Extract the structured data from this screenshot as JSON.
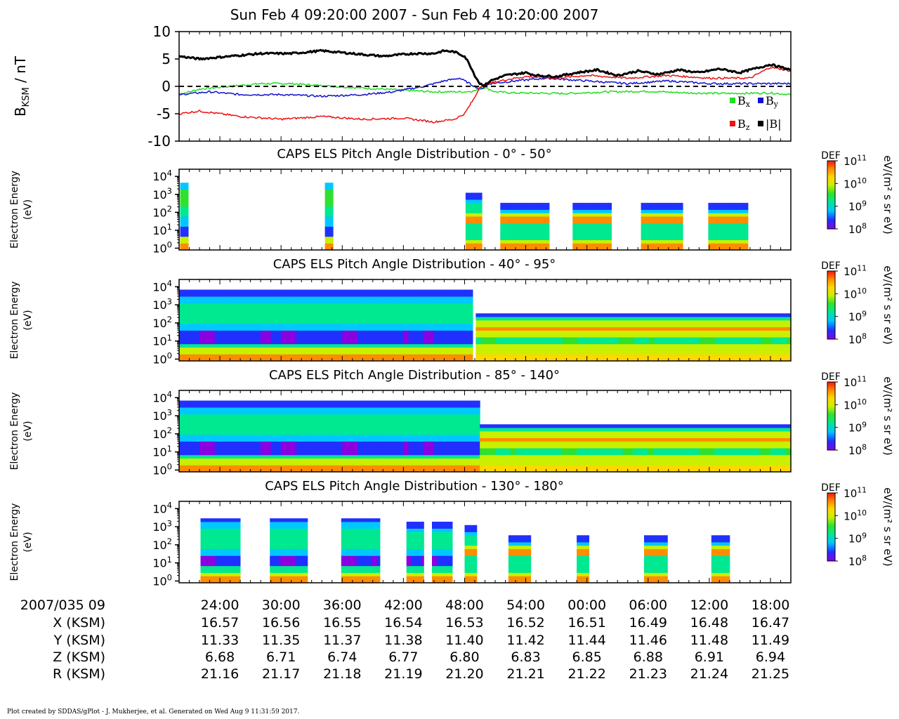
{
  "title": "Sun Feb 4 09:20:00 2007 - Sun Feb 4 10:20:00 2007",
  "footer": "Plot created by SDDAS/gPlot - J. Mukherjee, et al.  Generated on Wed Aug 9 11:31:59 2017.",
  "colors": {
    "bx": "#22dd22",
    "by": "#1111cc",
    "bz": "#ee1111",
    "bmag": "#000000",
    "colormap": [
      "#8a00e0",
      "#2030ff",
      "#00c8ff",
      "#00e890",
      "#30e030",
      "#c8f000",
      "#ffd800",
      "#ff8c00",
      "#ff1010"
    ]
  },
  "chart_data": [
    {
      "type": "line",
      "ylabel": "B_KSM / nT",
      "ylim": [
        -10,
        10
      ],
      "yticks": [
        "10",
        "5",
        "0",
        "-5",
        "-10"
      ],
      "xlim_minutes": [
        20,
        80
      ],
      "legend": [
        "Bx",
        "By",
        "Bz",
        "|B|"
      ],
      "legend_placement": "bottom-right",
      "zero_line": "dashed",
      "series": [
        {
          "name": "Bx",
          "x": [
            20,
            22,
            25,
            28,
            31,
            35,
            40,
            45,
            48,
            49,
            50,
            51,
            53,
            58,
            62,
            66,
            70,
            74,
            78,
            80
          ],
          "y": [
            -1.5,
            -0.5,
            0,
            0.5,
            0.5,
            0,
            -0.5,
            -1,
            -1,
            -0.8,
            -0.2,
            -1,
            -1.2,
            -1.3,
            -1,
            -0.9,
            -1.2,
            -1.3,
            -1.2,
            -1.5
          ]
        },
        {
          "name": "By",
          "x": [
            20,
            23,
            26,
            30,
            34,
            38,
            41,
            44,
            46,
            47.5,
            48.5,
            49.5,
            50.5,
            53,
            56,
            60,
            64,
            68,
            72,
            76,
            80
          ],
          "y": [
            -1.5,
            -1,
            -1.5,
            -1.5,
            -1.8,
            -1.5,
            -1,
            0,
            1,
            1.5,
            0.5,
            -0.5,
            0.5,
            1,
            1.5,
            1,
            0.5,
            1,
            0.5,
            0.5,
            0.5
          ]
        },
        {
          "name": "Bz",
          "x": [
            20,
            22,
            26,
            30,
            34,
            38,
            42,
            45,
            47,
            48,
            49,
            49.5,
            50.3,
            52,
            54,
            57,
            60,
            64,
            68,
            72,
            76,
            78,
            80
          ],
          "y": [
            -5,
            -4.5,
            -5.5,
            -6,
            -5.5,
            -6,
            -5.8,
            -6.5,
            -6,
            -5,
            -2,
            0,
            0.5,
            1.2,
            1.8,
            1.5,
            2,
            1.5,
            2,
            1.5,
            1.5,
            3.5,
            2.8
          ]
        },
        {
          "name": "|B|",
          "x": [
            20,
            22,
            25,
            28,
            31,
            34,
            37,
            40,
            43,
            45,
            46,
            47,
            48,
            48.5,
            49,
            49.5,
            50,
            50.5,
            52,
            54,
            55,
            57,
            59,
            61,
            63,
            65,
            67,
            69,
            71,
            73,
            75,
            77,
            78,
            79,
            80
          ],
          "y": [
            5.5,
            5,
            5.5,
            6,
            6,
            6.5,
            6,
            5.5,
            6,
            6,
            6.5,
            6.3,
            5.5,
            4,
            2,
            0.5,
            0.2,
            1,
            2,
            2.5,
            2,
            1.8,
            2.5,
            3,
            2,
            2.8,
            2.2,
            3,
            2.5,
            3.2,
            2.5,
            3.5,
            4,
            3.5,
            3
          ]
        }
      ]
    },
    {
      "type": "heatmap",
      "title": "CAPS ELS Pitch Angle Distribution - 0° - 50°",
      "ylabel": "Electron Energy",
      "yunit": "(eV)",
      "yticks": [
        "10^0",
        "10^1",
        "10^2",
        "10^3",
        "10^4"
      ],
      "colorbar": {
        "label": "DEF",
        "unit": "eV/(m² s sr eV)",
        "ticks": [
          "10^8",
          "10^9",
          "10^10",
          "10^11"
        ]
      },
      "coverage_minutes": [
        [
          20.1,
          20.9,
          "burst"
        ],
        [
          34.3,
          35.1,
          "burst"
        ],
        [
          48.1,
          49.7,
          "top3"
        ],
        [
          51.5,
          56.3,
          "top2.5"
        ],
        [
          58.6,
          62.4,
          "top2.5"
        ],
        [
          65.3,
          69.4,
          "top2.5"
        ],
        [
          71.9,
          75.8,
          "top2.5"
        ]
      ]
    },
    {
      "type": "heatmap",
      "title": "CAPS ELS Pitch Angle Distribution - 40° - 95°",
      "ylabel": "Electron Energy",
      "yunit": "(eV)",
      "yticks": [
        "10^0",
        "10^1",
        "10^2",
        "10^3",
        "10^4"
      ],
      "colorbar": {
        "label": "DEF",
        "unit": "eV/(m² s sr eV)",
        "ticks": [
          "10^8",
          "10^9",
          "10^10",
          "10^11"
        ]
      },
      "coverage_minutes": [
        [
          20,
          48.8,
          "plasma_sheet"
        ],
        [
          49.1,
          80,
          "lobe"
        ]
      ]
    },
    {
      "type": "heatmap",
      "title": "CAPS ELS Pitch Angle Distribution - 85° - 140°",
      "ylabel": "Electron Energy",
      "yunit": "(eV)",
      "yticks": [
        "10^0",
        "10^1",
        "10^2",
        "10^3",
        "10^4"
      ],
      "colorbar": {
        "label": "DEF",
        "unit": "eV/(m² s sr eV)",
        "ticks": [
          "10^8",
          "10^9",
          "10^10",
          "10^11"
        ]
      },
      "coverage_minutes": [
        [
          20,
          49.5,
          "plasma_sheet"
        ],
        [
          49.5,
          80,
          "lobe"
        ]
      ]
    },
    {
      "type": "heatmap",
      "title": "CAPS ELS Pitch Angle Distribution - 130° - 180°",
      "ylabel": "Electron Energy",
      "yunit": "(eV)",
      "yticks": [
        "10^0",
        "10^1",
        "10^2",
        "10^3",
        "10^4"
      ],
      "colorbar": {
        "label": "DEF",
        "unit": "eV/(m² s sr eV)",
        "ticks": [
          "10^8",
          "10^9",
          "10^10",
          "10^11"
        ]
      },
      "coverage_minutes": [
        [
          22.1,
          26.0,
          "top3.5"
        ],
        [
          28.9,
          32.6,
          "top3.5"
        ],
        [
          35.9,
          39.7,
          "top3.5"
        ],
        [
          42.3,
          44.0,
          "top3.2"
        ],
        [
          44.8,
          46.8,
          "top3.2"
        ],
        [
          48.0,
          49.2,
          "top3"
        ],
        [
          52.3,
          54.5,
          "top2.5"
        ],
        [
          59.0,
          60.2,
          "top2.5"
        ],
        [
          65.6,
          67.9,
          "top2.5"
        ],
        [
          72.2,
          74.0,
          "top2.5"
        ]
      ]
    }
  ],
  "time_axis": {
    "label": "2007/035 09",
    "ticks": [
      "24:00",
      "30:00",
      "36:00",
      "42:00",
      "48:00",
      "54:00",
      "00:00",
      "06:00",
      "12:00",
      "18:00"
    ],
    "tick_minutes": [
      24,
      30,
      36,
      42,
      48,
      54,
      60,
      66,
      72,
      78
    ]
  },
  "ephemeris": [
    {
      "label": "X (KSM)",
      "values": [
        "16.57",
        "16.56",
        "16.55",
        "16.54",
        "16.53",
        "16.52",
        "16.51",
        "16.49",
        "16.48",
        "16.47"
      ]
    },
    {
      "label": "Y (KSM)",
      "values": [
        "11.33",
        "11.35",
        "11.37",
        "11.38",
        "11.40",
        "11.42",
        "11.44",
        "11.46",
        "11.48",
        "11.49"
      ]
    },
    {
      "label": "Z (KSM)",
      "values": [
        "6.68",
        "6.71",
        "6.74",
        "6.77",
        "6.80",
        "6.83",
        "6.85",
        "6.88",
        "6.91",
        "6.94"
      ]
    },
    {
      "label": "R (KSM)",
      "values": [
        "21.16",
        "21.17",
        "21.18",
        "21.19",
        "21.20",
        "21.21",
        "21.22",
        "21.23",
        "21.24",
        "21.25"
      ]
    }
  ]
}
